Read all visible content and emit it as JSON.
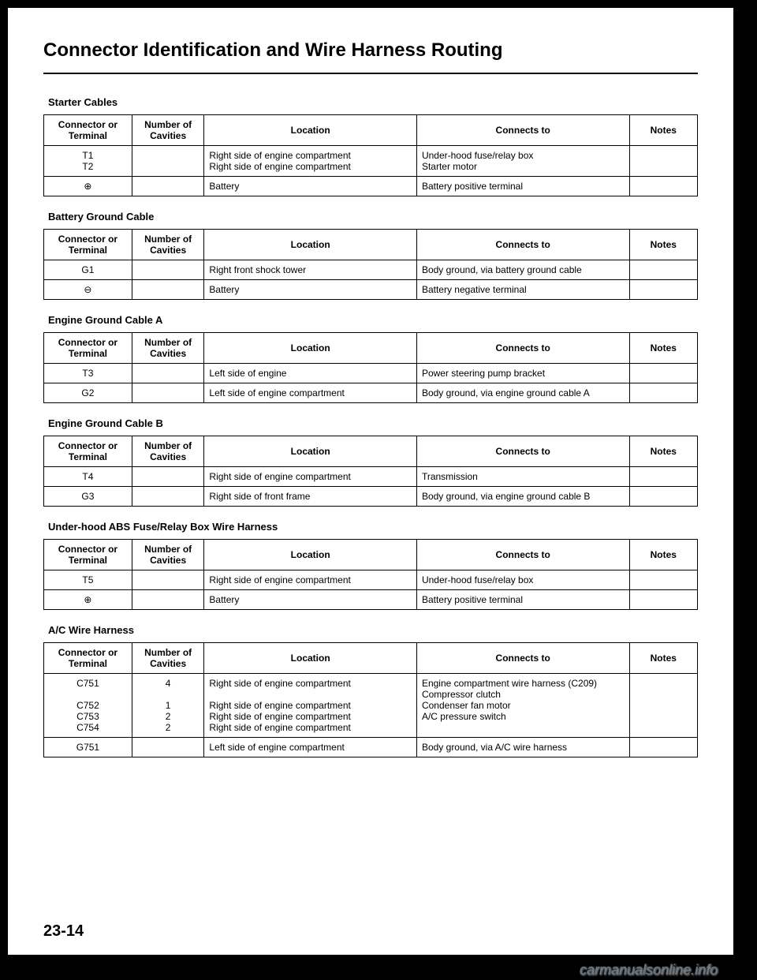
{
  "page": {
    "title": "Connector Identification and Wire Harness Routing",
    "page_number": "23-14",
    "watermark": "carmanualsonline.info"
  },
  "columns": {
    "connector": "Connector or Terminal",
    "cavities": "Number of Cavities",
    "location": "Location",
    "connects": "Connects to",
    "notes": "Notes"
  },
  "sections": [
    {
      "title": "Starter Cables",
      "rows": [
        {
          "conn": "T1\nT2",
          "cav": "",
          "loc": "Right side of engine compartment\nRight side of engine compartment",
          "to": "Under-hood fuse/relay box\nStarter motor",
          "notes": ""
        },
        {
          "conn": "⊕",
          "cav": "",
          "loc": "Battery",
          "to": "Battery positive terminal",
          "notes": ""
        }
      ]
    },
    {
      "title": "Battery Ground Cable",
      "rows": [
        {
          "conn": "G1",
          "cav": "",
          "loc": "Right front shock tower",
          "to": "Body ground, via battery ground cable",
          "notes": ""
        },
        {
          "conn": "⊖",
          "cav": "",
          "loc": "Battery",
          "to": "Battery negative terminal",
          "notes": ""
        }
      ]
    },
    {
      "title": "Engine Ground Cable A",
      "rows": [
        {
          "conn": "T3",
          "cav": "",
          "loc": "Left side of engine",
          "to": "Power steering pump bracket",
          "notes": ""
        },
        {
          "conn": "G2",
          "cav": "",
          "loc": "Left side of engine compartment",
          "to": "Body ground, via engine ground cable A",
          "notes": ""
        }
      ]
    },
    {
      "title": "Engine Ground Cable B",
      "rows": [
        {
          "conn": "T4",
          "cav": "",
          "loc": "Right side of engine compartment",
          "to": "Transmission",
          "notes": ""
        },
        {
          "conn": "G3",
          "cav": "",
          "loc": "Right side of front frame",
          "to": "Body ground, via engine ground cable B",
          "notes": ""
        }
      ]
    },
    {
      "title": "Under-hood ABS Fuse/Relay Box Wire Harness",
      "rows": [
        {
          "conn": "T5",
          "cav": "",
          "loc": "Right side of engine compartment",
          "to": "Under-hood fuse/relay box",
          "notes": ""
        },
        {
          "conn": "⊕",
          "cav": "",
          "loc": "Battery",
          "to": "Battery positive terminal",
          "notes": ""
        }
      ]
    },
    {
      "title": "A/C Wire Harness",
      "rows": [
        {
          "conn": "C751\n\nC752\nC753\nC754",
          "cav": "4\n\n1\n2\n2",
          "loc": "Right side of engine compartment\n\nRight side of engine compartment\nRight side of engine compartment\nRight side of engine compartment",
          "to": "Engine compartment wire harness (C209)\nCompressor clutch\nCondenser fan motor\nA/C pressure switch",
          "notes": ""
        },
        {
          "conn": "G751",
          "cav": "",
          "loc": "Left side of engine compartment",
          "to": "Body ground, via A/C wire harness",
          "notes": ""
        }
      ]
    }
  ]
}
